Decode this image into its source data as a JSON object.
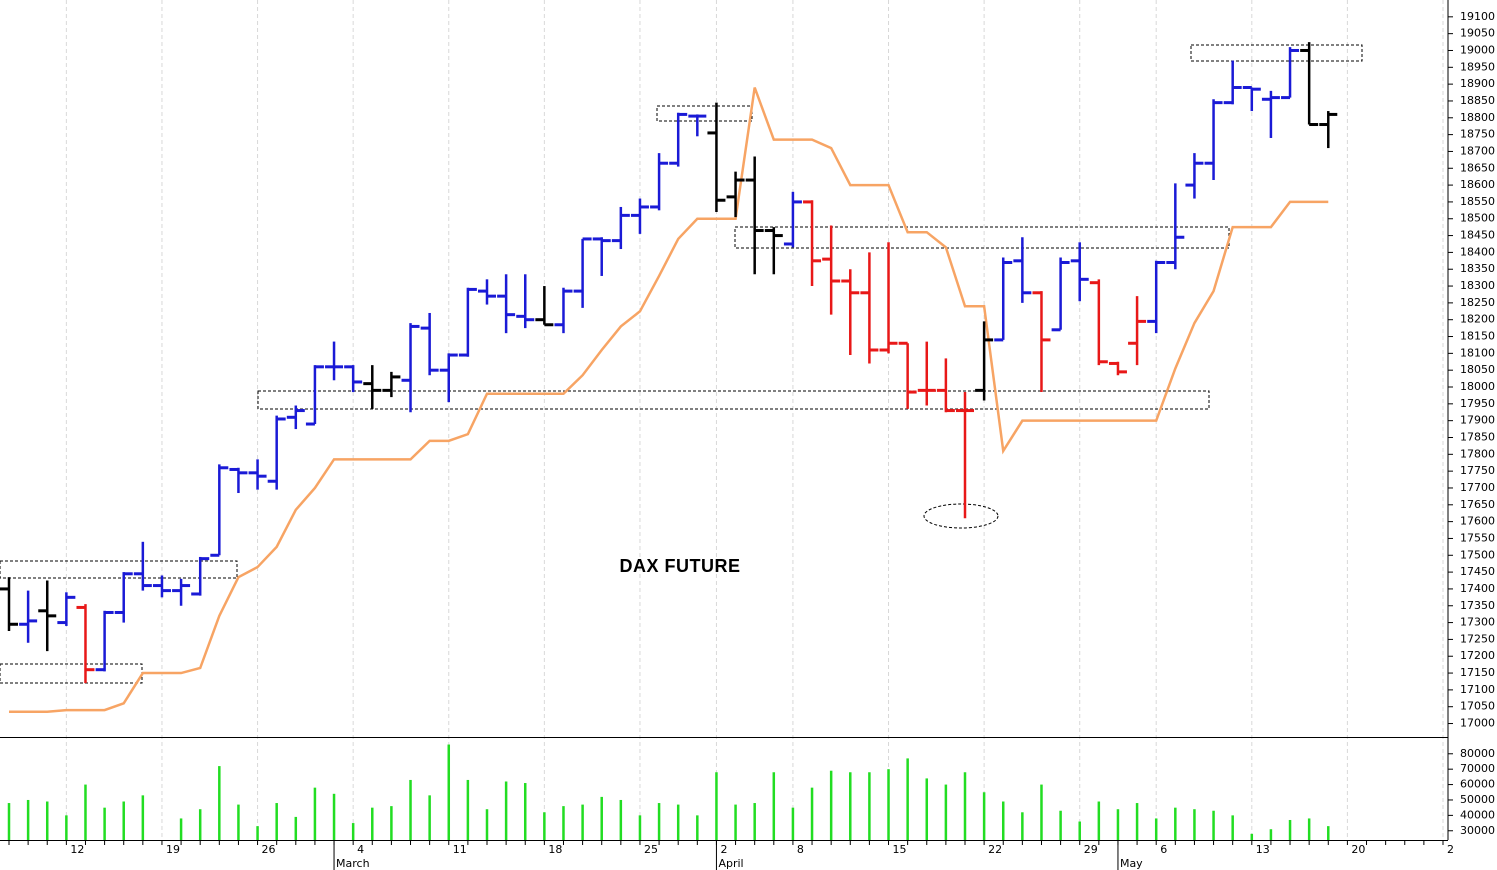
{
  "chart_data": {
    "type": "ohlc",
    "title": "DAX FUTURE",
    "categories": [
      null,
      null,
      null,
      "12",
      null,
      null,
      null,
      null,
      "19",
      null,
      null,
      null,
      null,
      "26",
      null,
      null,
      null,
      null,
      "4",
      null,
      null,
      null,
      null,
      "11",
      null,
      null,
      null,
      null,
      "18",
      null,
      null,
      null,
      null,
      "25",
      null,
      null,
      null,
      "2",
      null,
      null,
      null,
      "8",
      null,
      null,
      null,
      null,
      "15",
      null,
      null,
      null,
      null,
      "22",
      null,
      null,
      null,
      null,
      "29",
      null,
      null,
      null,
      "6",
      null,
      null,
      null,
      null,
      "13",
      null,
      null,
      null,
      null,
      "20",
      null,
      null,
      null,
      null,
      "2"
    ],
    "months": [
      null,
      null,
      null,
      null,
      null,
      null,
      null,
      null,
      null,
      null,
      null,
      null,
      null,
      null,
      null,
      null,
      null,
      "March",
      null,
      null,
      null,
      null,
      null,
      null,
      null,
      null,
      null,
      null,
      null,
      null,
      null,
      null,
      null,
      null,
      null,
      null,
      null,
      "April",
      null,
      null,
      null,
      null,
      null,
      null,
      null,
      null,
      null,
      null,
      null,
      null,
      null,
      null,
      null,
      null,
      null,
      null,
      null,
      null,
      "May",
      null,
      null,
      null,
      null,
      null,
      null,
      null,
      null,
      null,
      null,
      null,
      null,
      null,
      null,
      null,
      null,
      null
    ],
    "series": {
      "open": [
        17400,
        17295,
        17335,
        17300,
        17345,
        17160,
        17330,
        17445,
        17410,
        17395,
        17385,
        17500,
        17755,
        17745,
        17720,
        17910,
        17890,
        18060,
        18060,
        18010,
        17990,
        18020,
        18175,
        18050,
        18095,
        18285,
        18270,
        18210,
        18200,
        18185,
        18285,
        18440,
        18435,
        18510,
        18535,
        18665,
        18805,
        18755,
        18565,
        18615,
        18465,
        18425,
        18550,
        18380,
        18315,
        18280,
        18110,
        18130,
        17990,
        17990,
        17930,
        17990,
        18140,
        18375,
        18280,
        18170,
        18375,
        18310,
        18070,
        18130,
        18195,
        18370,
        18600,
        18665,
        18845,
        18890,
        18855,
        18860,
        19000,
        18780,
        null,
        null,
        null,
        null,
        null,
        null
      ],
      "high": [
        17435,
        17395,
        17425,
        17390,
        17355,
        17335,
        17450,
        17540,
        17440,
        17430,
        17495,
        17770,
        17760,
        17785,
        17915,
        17945,
        18065,
        18135,
        18065,
        18065,
        18045,
        18190,
        18220,
        18100,
        18295,
        18320,
        18335,
        18335,
        18300,
        18295,
        18440,
        18445,
        18535,
        18560,
        18695,
        18815,
        18810,
        18845,
        18640,
        18685,
        18475,
        18580,
        18555,
        18480,
        18350,
        18400,
        18430,
        18130,
        18135,
        18085,
        17985,
        18195,
        18385,
        18445,
        18285,
        18385,
        18430,
        18320,
        18075,
        18270,
        18375,
        18605,
        18695,
        18855,
        18970,
        18890,
        18880,
        19010,
        19025,
        18820,
        null,
        null,
        null,
        null,
        null,
        null
      ],
      "low": [
        17275,
        17240,
        17215,
        17290,
        17120,
        17155,
        17300,
        17395,
        17375,
        17350,
        17380,
        17500,
        17685,
        17695,
        17695,
        17875,
        17890,
        18020,
        17985,
        17935,
        17970,
        17925,
        18035,
        17955,
        18090,
        18245,
        18160,
        18175,
        18185,
        18160,
        18235,
        18330,
        18410,
        18455,
        18525,
        18655,
        18745,
        18520,
        18505,
        18335,
        18335,
        18415,
        18300,
        18215,
        18095,
        18070,
        18100,
        17935,
        17945,
        17925,
        17610,
        17960,
        18140,
        18250,
        17985,
        18170,
        18255,
        18065,
        18035,
        18065,
        18160,
        18350,
        18560,
        18615,
        18840,
        18820,
        18740,
        18860,
        18780,
        18710,
        null,
        null,
        null,
        null,
        null,
        null
      ],
      "close": [
        17295,
        17305,
        17320,
        17375,
        17160,
        17330,
        17445,
        17410,
        17395,
        17410,
        17490,
        17760,
        17745,
        17735,
        17905,
        17930,
        18060,
        18060,
        18015,
        17990,
        18030,
        18180,
        18050,
        18095,
        18290,
        18270,
        18215,
        18200,
        18185,
        18285,
        18440,
        18435,
        18510,
        18535,
        18665,
        18810,
        18805,
        18555,
        18615,
        18465,
        18450,
        18550,
        18375,
        18315,
        18280,
        18110,
        18130,
        17985,
        17990,
        17930,
        17930,
        18140,
        18370,
        18280,
        18140,
        18370,
        18320,
        18075,
        18045,
        18195,
        18370,
        18445,
        18665,
        18845,
        18890,
        18885,
        18860,
        19000,
        18780,
        18810,
        null,
        null,
        null,
        null,
        null,
        null
      ],
      "colors": [
        "#000000",
        "#1a1ad6",
        "#000000",
        "#1a1ad6",
        "#e81818",
        "#1a1ad6",
        "#1a1ad6",
        "#1a1ad6",
        "#1a1ad6",
        "#1a1ad6",
        "#1a1ad6",
        "#1a1ad6",
        "#1a1ad6",
        "#1a1ad6",
        "#1a1ad6",
        "#1a1ad6",
        "#1a1ad6",
        "#1a1ad6",
        "#1a1ad6",
        "#000000",
        "#000000",
        "#1a1ad6",
        "#1a1ad6",
        "#1a1ad6",
        "#1a1ad6",
        "#1a1ad6",
        "#1a1ad6",
        "#1a1ad6",
        "#000000",
        "#1a1ad6",
        "#1a1ad6",
        "#1a1ad6",
        "#1a1ad6",
        "#1a1ad6",
        "#1a1ad6",
        "#1a1ad6",
        "#1a1ad6",
        "#000000",
        "#000000",
        "#000000",
        "#000000",
        "#1a1ad6",
        "#e81818",
        "#e81818",
        "#e81818",
        "#e81818",
        "#e81818",
        "#e81818",
        "#e81818",
        "#e81818",
        "#e81818",
        "#000000",
        "#1a1ad6",
        "#1a1ad6",
        "#e81818",
        "#1a1ad6",
        "#1a1ad6",
        "#e81818",
        "#e81818",
        "#e81818",
        "#1a1ad6",
        "#1a1ad6",
        "#1a1ad6",
        "#1a1ad6",
        "#1a1ad6",
        "#1a1ad6",
        "#1a1ad6",
        "#1a1ad6",
        "#000000",
        "#000000",
        null,
        null,
        null,
        null,
        null,
        null
      ]
    },
    "stop_line": {
      "color": "#f7a464",
      "values": [
        17035,
        17035,
        17035,
        17040,
        17040,
        17040,
        17060,
        17150,
        17150,
        17150,
        17165,
        17320,
        17435,
        17465,
        17525,
        17635,
        17700,
        17785,
        17785,
        17785,
        17785,
        17785,
        17840,
        17840,
        17860,
        17980,
        17980,
        17980,
        17980,
        17980,
        18035,
        18110,
        18180,
        18225,
        18330,
        18440,
        18500,
        18500,
        18500,
        18890,
        18735,
        18735,
        18735,
        18710,
        18600,
        18600,
        18600,
        18460,
        18460,
        18415,
        18240,
        18240,
        17810,
        17900,
        17900,
        17900,
        17900,
        17900,
        17900,
        17900,
        17900,
        18055,
        18190,
        18285,
        18475,
        18475,
        18475,
        18550,
        18550,
        18550,
        null,
        null,
        null,
        null,
        null,
        null
      ]
    },
    "volume": {
      "color": "#22dd22",
      "values": [
        48000,
        50000,
        49000,
        40000,
        60000,
        45000,
        49000,
        53000,
        null,
        38000,
        44000,
        72000,
        47000,
        33000,
        48000,
        39000,
        58000,
        54000,
        35000,
        45000,
        46000,
        63000,
        53000,
        86000,
        63000,
        44000,
        62000,
        61000,
        42000,
        46000,
        47000,
        52000,
        50000,
        40000,
        48000,
        47000,
        40000,
        68000,
        47000,
        48000,
        68000,
        45000,
        58000,
        69000,
        68000,
        68000,
        70000,
        77000,
        64000,
        60000,
        68000,
        55000,
        49000,
        42000,
        60000,
        43000,
        36000,
        49000,
        44000,
        48000,
        38000,
        45000,
        44000,
        43000,
        40000,
        28000,
        31000,
        37000,
        38000,
        33000,
        null,
        null,
        null,
        null,
        null,
        null
      ],
      "ylim": [
        24000,
        87000
      ],
      "yticks": [
        30000,
        40000,
        50000,
        60000,
        70000,
        80000
      ]
    },
    "ylim": [
      16960,
      19150
    ],
    "yticks": [
      17000,
      17050,
      17100,
      17150,
      17200,
      17250,
      17300,
      17350,
      17400,
      17450,
      17500,
      17550,
      17600,
      17650,
      17700,
      17750,
      17800,
      17850,
      17900,
      17950,
      18000,
      18050,
      18100,
      18150,
      18200,
      18250,
      18300,
      18350,
      18400,
      18450,
      18500,
      18550,
      18600,
      18650,
      18700,
      18750,
      18800,
      18850,
      18900,
      18950,
      19000,
      19050,
      19100
    ],
    "grid": true
  }
}
